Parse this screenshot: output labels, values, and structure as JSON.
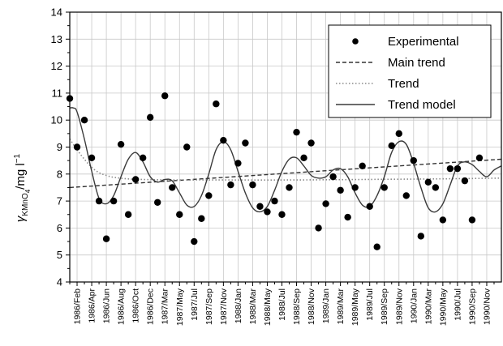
{
  "chart_data": {
    "type": "scatter",
    "ylabel_main": "γ",
    "ylabel_sub": "KMnO",
    "ylabel_subsub": "4",
    "ylabel_units": "/mg l",
    "ylabel_sup": "−1",
    "xlabel": "",
    "ylim": [
      4,
      14
    ],
    "yticks": [
      "4",
      "5",
      "6",
      "7",
      "8",
      "9",
      "10",
      "11",
      "12",
      "13",
      "14"
    ],
    "x_range": [
      0,
      59
    ],
    "x_tick_labels": [
      "1986/Feb",
      "1986/Apr",
      "1986/Jun",
      "1986/Aug",
      "1986/Oct",
      "1986/Dec",
      "1987/Mar",
      "1987/May",
      "1987/Jul",
      "1987/Sep",
      "1987/Nov",
      "1988/Jan",
      "1988/Mar",
      "1988/May",
      "1988/Jul",
      "1988/Sep",
      "1988/Nov",
      "1989/Jan",
      "1989/Mar",
      "1989/May",
      "1989/Jul",
      "1989/Sep",
      "1989/Nov",
      "1990/Jan",
      "1990/Mar",
      "1990/May",
      "1990/Jul",
      "1990/Sep",
      "1990/Nov"
    ],
    "grid": true,
    "legend_position": "top-right",
    "series": [
      {
        "name": "Experimental",
        "kind": "scatter",
        "points": [
          [
            0,
            10.8
          ],
          [
            1,
            9.0
          ],
          [
            2,
            10.0
          ],
          [
            3,
            8.6
          ],
          [
            4,
            7.0
          ],
          [
            5,
            5.6
          ],
          [
            6,
            7.0
          ],
          [
            7,
            9.1
          ],
          [
            8,
            6.5
          ],
          [
            9,
            7.8
          ],
          [
            10,
            8.6
          ],
          [
            11,
            10.1
          ],
          [
            12,
            6.95
          ],
          [
            13,
            10.9
          ],
          [
            14,
            7.5
          ],
          [
            15,
            6.5
          ],
          [
            16,
            9.0
          ],
          [
            17,
            5.5
          ],
          [
            18,
            6.35
          ],
          [
            19,
            7.2
          ],
          [
            20,
            10.6
          ],
          [
            21,
            9.25
          ],
          [
            22,
            7.6
          ],
          [
            23,
            8.4
          ],
          [
            24,
            9.15
          ],
          [
            25,
            7.6
          ],
          [
            26,
            6.8
          ],
          [
            27,
            6.6
          ],
          [
            28,
            7.0
          ],
          [
            29,
            6.5
          ],
          [
            30,
            7.5
          ],
          [
            31,
            9.55
          ],
          [
            32,
            8.6
          ],
          [
            33,
            9.15
          ],
          [
            34,
            6.0
          ],
          [
            35,
            6.9
          ],
          [
            36,
            7.9
          ],
          [
            37,
            7.4
          ],
          [
            38,
            6.4
          ],
          [
            39,
            7.5
          ],
          [
            40,
            8.3
          ],
          [
            41,
            6.8
          ],
          [
            42,
            5.3
          ],
          [
            43,
            7.5
          ],
          [
            44,
            9.05
          ],
          [
            45,
            9.5
          ],
          [
            46,
            7.2
          ],
          [
            47,
            8.5
          ],
          [
            48,
            5.7
          ],
          [
            49,
            7.7
          ],
          [
            50,
            7.5
          ],
          [
            51,
            6.3
          ],
          [
            52,
            8.2
          ],
          [
            53,
            8.2
          ],
          [
            54,
            7.75
          ],
          [
            55,
            6.3
          ],
          [
            56,
            8.6
          ]
        ]
      },
      {
        "name": "Main trend",
        "kind": "line",
        "style": "dashed",
        "points": [
          [
            0,
            7.5
          ],
          [
            59,
            8.55
          ]
        ]
      },
      {
        "name": "Trend",
        "kind": "line",
        "style": "dotted",
        "points": [
          [
            0,
            9.3
          ],
          [
            1,
            8.9
          ],
          [
            2,
            8.55
          ],
          [
            3,
            8.25
          ],
          [
            4,
            8.05
          ],
          [
            5,
            7.95
          ],
          [
            6,
            7.88
          ],
          [
            8,
            7.82
          ],
          [
            10,
            7.8
          ],
          [
            15,
            7.78
          ],
          [
            20,
            7.78
          ],
          [
            30,
            7.78
          ],
          [
            40,
            7.8
          ],
          [
            50,
            7.82
          ],
          [
            59,
            7.85
          ]
        ]
      },
      {
        "name": "Trend model",
        "kind": "line",
        "style": "solid",
        "points": [
          [
            0,
            10.45
          ],
          [
            0.5,
            10.45
          ],
          [
            1,
            10.3
          ],
          [
            2,
            9.3
          ],
          [
            3,
            8.1
          ],
          [
            4,
            7.1
          ],
          [
            5,
            6.9
          ],
          [
            6,
            7.2
          ],
          [
            7,
            7.9
          ],
          [
            8,
            8.55
          ],
          [
            9,
            8.8
          ],
          [
            10,
            8.45
          ],
          [
            11,
            7.9
          ],
          [
            12,
            7.7
          ],
          [
            13,
            7.8
          ],
          [
            14,
            7.75
          ],
          [
            15,
            7.3
          ],
          [
            16,
            6.85
          ],
          [
            17,
            6.8
          ],
          [
            18,
            7.2
          ],
          [
            19,
            8.0
          ],
          [
            20,
            8.9
          ],
          [
            21,
            9.2
          ],
          [
            22,
            8.9
          ],
          [
            23,
            8.1
          ],
          [
            24,
            7.3
          ],
          [
            25,
            6.75
          ],
          [
            26,
            6.6
          ],
          [
            27,
            6.8
          ],
          [
            28,
            7.4
          ],
          [
            29,
            8.1
          ],
          [
            30,
            8.55
          ],
          [
            31,
            8.6
          ],
          [
            32,
            8.3
          ],
          [
            33,
            7.95
          ],
          [
            34,
            7.85
          ],
          [
            35,
            7.9
          ],
          [
            36,
            8.15
          ],
          [
            37,
            8.2
          ],
          [
            38,
            7.9
          ],
          [
            39,
            7.3
          ],
          [
            40,
            6.85
          ],
          [
            41,
            6.8
          ],
          [
            42,
            7.2
          ],
          [
            43,
            7.9
          ],
          [
            44,
            8.8
          ],
          [
            45,
            9.2
          ],
          [
            46,
            9.1
          ],
          [
            47,
            8.4
          ],
          [
            48,
            7.5
          ],
          [
            49,
            6.75
          ],
          [
            50,
            6.6
          ],
          [
            51,
            6.9
          ],
          [
            52,
            7.6
          ],
          [
            53,
            8.3
          ],
          [
            54,
            8.45
          ],
          [
            55,
            8.35
          ],
          [
            56,
            8.1
          ],
          [
            57,
            7.9
          ],
          [
            58,
            8.15
          ],
          [
            59,
            8.3
          ]
        ]
      }
    ]
  },
  "colors": {
    "ink": "#000000",
    "grid": "#c8c8c8",
    "main_trend": "#333333",
    "trend": "#8a8a8a",
    "trend_model": "#3a3a3a"
  }
}
